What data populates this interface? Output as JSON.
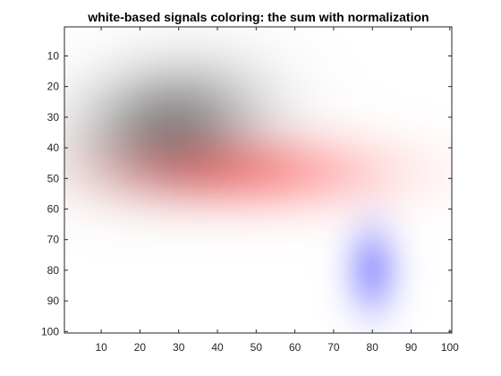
{
  "chart_data": {
    "type": "heatmap",
    "title": "white-based signals coloring: the sum with normalization",
    "xlabel": "",
    "ylabel": "",
    "xlim": [
      0.5,
      100.5
    ],
    "ylim": [
      0.5,
      100.5
    ],
    "y_direction": "reversed",
    "xticks": [
      10,
      20,
      30,
      40,
      50,
      60,
      70,
      80,
      90,
      100
    ],
    "yticks": [
      10,
      20,
      30,
      40,
      50,
      60,
      70,
      80,
      90,
      100
    ],
    "xtick_labels": [
      "10",
      "20",
      "30",
      "40",
      "50",
      "60",
      "70",
      "80",
      "90",
      "100"
    ],
    "ytick_labels": [
      "10",
      "20",
      "30",
      "40",
      "50",
      "60",
      "70",
      "80",
      "90",
      "100"
    ],
    "grid": false,
    "background_color": "#ffffff",
    "series": [
      {
        "color": "#000000",
        "peak_intensity": 0.42,
        "center": [
          28,
          32
        ],
        "spread": [
          16,
          13
        ],
        "tilt_deg": -20
      },
      {
        "color": "#ff0000",
        "peak_intensity": 0.36,
        "center": [
          48,
          48
        ],
        "spread": [
          24,
          9
        ],
        "tilt_deg": 0
      },
      {
        "color": "#0000ff",
        "peak_intensity": 0.33,
        "center": [
          80,
          80
        ],
        "spread": [
          5,
          10
        ],
        "tilt_deg": 0
      }
    ]
  }
}
